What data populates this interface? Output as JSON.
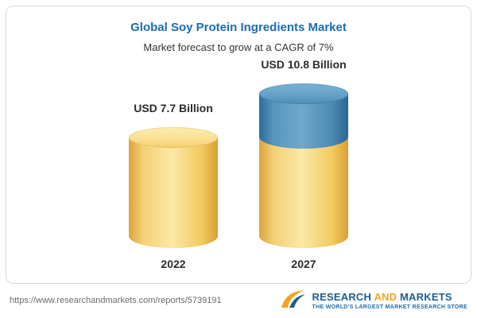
{
  "header": {
    "title": "Global Soy Protein Ingredients Market",
    "subtitle": "Market forecast to grow at a CAGR of 7%"
  },
  "chart_data": {
    "type": "bar",
    "variant": "3d-cylinder",
    "categories": [
      "2022",
      "2027"
    ],
    "values": [
      7.7,
      10.8
    ],
    "value_labels": [
      "USD 7.7 Billion",
      "USD 10.8 Billion"
    ],
    "unit": "USD Billion",
    "title": "Global Soy Protein Ingredients Market",
    "subtitle": "Market forecast to grow at a CAGR of 7%",
    "cagr": "7%",
    "colors": {
      "base_segment": "#F2CA60",
      "growth_segment": "#4C89B3"
    },
    "legend": "none",
    "grid": false
  },
  "footer": {
    "url": "https://www.researchandmarkets.com/reports/5739191",
    "logo": {
      "word_research": "RESEARCH",
      "word_and": "AND",
      "word_markets": "MARKETS",
      "tagline": "THE WORLD'S LARGEST MARKET RESEARCH STORE"
    }
  }
}
